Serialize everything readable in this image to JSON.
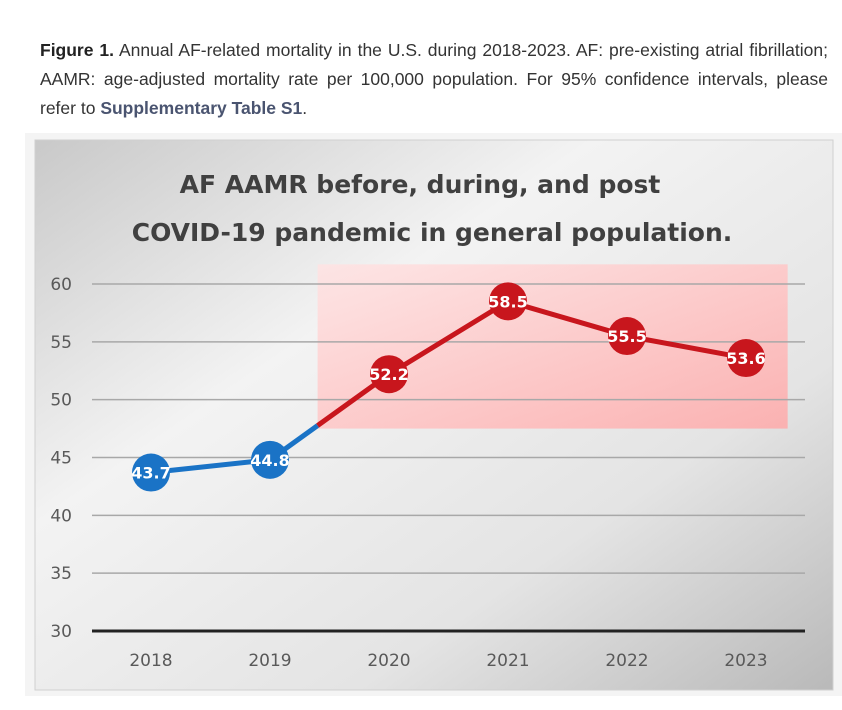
{
  "caption": {
    "label": "Figure 1.",
    "text": " Annual AF-related mortality in the U.S. during 2018-2023. AF: pre-existing atrial fibrillation; AAMR: age-adjusted mortality rate per 100,000 population. For 95% confidence intervals, please refer to ",
    "link": "Supplementary Table S1",
    "end": "."
  },
  "chart_data": {
    "type": "line",
    "title": [
      "AF AAMR before, during, and post",
      "COVID-19 pandemic in general population."
    ],
    "categories": [
      "2018",
      "2019",
      "2020",
      "2021",
      "2022",
      "2023"
    ],
    "values": [
      43.7,
      44.8,
      52.2,
      58.5,
      55.5,
      53.6
    ],
    "labels": [
      "43.7",
      "44.8",
      "52.2",
      "58.5",
      "55.5",
      "53.6"
    ],
    "ylim": [
      30,
      60
    ],
    "yticks": [
      "30",
      "35",
      "40",
      "45",
      "50",
      "55",
      "60"
    ],
    "highlight_range": "2020-2023",
    "colors": {
      "pre": "#1a73c6",
      "pandemic": "#c8161d",
      "highlight": "#ffb0b0"
    },
    "grid": true
  }
}
